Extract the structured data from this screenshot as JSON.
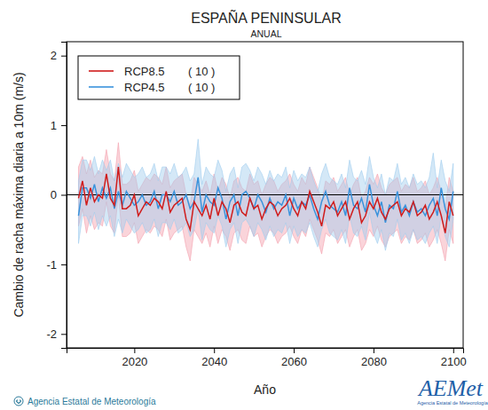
{
  "chart_data": {
    "type": "line",
    "title": "ESPAÑA PENINSULAR",
    "subtitle": "ANUAL",
    "x_label": "Año",
    "y_label": "Cambio de racha máxima diaria a 10m (m/s)",
    "credit": "Agencia Estatal de Meteorología",
    "logo": "AEMet",
    "logo_caption": "Agencia Estatal de Meteorología",
    "xlim": [
      2003,
      2102.5
    ],
    "ylim": [
      -2.2,
      2.2
    ],
    "xticks": [
      2020,
      2040,
      2060,
      2080,
      2100
    ],
    "yticks": [
      -2,
      -1,
      0,
      1,
      2
    ],
    "reference_line": 0,
    "grid": false,
    "legend": "top-left",
    "x": [
      2006,
      2007,
      2008,
      2009,
      2010,
      2011,
      2012,
      2013,
      2014,
      2015,
      2016,
      2017,
      2018,
      2019,
      2020,
      2021,
      2022,
      2023,
      2024,
      2025,
      2026,
      2027,
      2028,
      2029,
      2030,
      2031,
      2032,
      2033,
      2034,
      2035,
      2036,
      2037,
      2038,
      2039,
      2040,
      2041,
      2042,
      2043,
      2044,
      2045,
      2046,
      2047,
      2048,
      2049,
      2050,
      2051,
      2052,
      2053,
      2054,
      2055,
      2056,
      2057,
      2058,
      2059,
      2060,
      2061,
      2062,
      2063,
      2064,
      2065,
      2066,
      2067,
      2068,
      2069,
      2070,
      2071,
      2072,
      2073,
      2074,
      2075,
      2076,
      2077,
      2078,
      2079,
      2080,
      2081,
      2082,
      2083,
      2084,
      2085,
      2086,
      2087,
      2088,
      2089,
      2090,
      2091,
      2092,
      2093,
      2094,
      2095,
      2096,
      2097,
      2098,
      2099,
      2100
    ],
    "series": [
      {
        "name": "RCP8.5",
        "models": "( 10 )",
        "color": "#d01c1c",
        "band_color": "#f4a0ad",
        "values": [
          -0.05,
          0.2,
          -0.15,
          0.1,
          -0.1,
          0.0,
          -0.05,
          0.3,
          -0.05,
          -0.15,
          0.4,
          -0.2,
          -0.2,
          -0.15,
          0.0,
          -0.3,
          -0.2,
          -0.1,
          -0.15,
          -0.05,
          -0.1,
          -0.2,
          0.05,
          -0.25,
          -0.15,
          -0.1,
          -0.05,
          -0.35,
          -0.5,
          -0.1,
          -0.2,
          -0.3,
          -0.15,
          -0.35,
          -0.05,
          -0.3,
          -0.1,
          -0.2,
          -0.4,
          -0.15,
          -0.1,
          -0.25,
          -0.3,
          -0.05,
          -0.2,
          -0.15,
          -0.35,
          -0.2,
          -0.1,
          -0.15,
          -0.3,
          -0.2,
          -0.15,
          -0.05,
          -0.2,
          -0.3,
          -0.1,
          -0.2,
          0.05,
          -0.1,
          -0.25,
          -0.45,
          -0.15,
          -0.2,
          -0.1,
          -0.3,
          -0.2,
          -0.1,
          -0.35,
          -0.2,
          -0.1,
          -0.4,
          -0.3,
          -0.1,
          -0.2,
          -0.05,
          -0.25,
          -0.35,
          -0.2,
          -0.15,
          -0.1,
          -0.3,
          -0.2,
          -0.25,
          -0.1,
          -0.3,
          -0.25,
          -0.15,
          -0.35,
          -0.25,
          -0.1,
          -0.3,
          -0.55,
          -0.1,
          -0.3
        ],
        "upper": [
          0.4,
          0.55,
          0.3,
          0.5,
          0.25,
          0.35,
          0.3,
          0.65,
          0.3,
          0.2,
          0.75,
          0.15,
          0.15,
          0.2,
          0.35,
          0.05,
          0.15,
          0.25,
          0.2,
          0.3,
          0.25,
          0.15,
          0.4,
          0.1,
          0.2,
          0.25,
          0.3,
          0.0,
          -0.15,
          0.25,
          0.15,
          0.05,
          0.2,
          0.0,
          0.3,
          0.05,
          0.25,
          0.15,
          -0.05,
          0.2,
          0.25,
          0.1,
          0.05,
          0.3,
          0.15,
          0.2,
          0.0,
          0.15,
          0.25,
          0.2,
          0.05,
          0.15,
          0.2,
          0.3,
          0.15,
          0.05,
          0.25,
          0.15,
          0.4,
          0.25,
          0.1,
          -0.1,
          0.2,
          0.15,
          0.25,
          0.05,
          0.15,
          0.25,
          0.0,
          0.15,
          0.25,
          -0.05,
          0.05,
          0.25,
          0.15,
          0.3,
          0.1,
          0.0,
          0.15,
          0.2,
          0.25,
          0.05,
          0.15,
          0.1,
          0.25,
          0.05,
          0.1,
          0.2,
          0.0,
          0.1,
          0.25,
          0.05,
          -0.2,
          0.25,
          0.05
        ],
        "lower": [
          -0.45,
          -0.2,
          -0.55,
          -0.3,
          -0.5,
          -0.4,
          -0.45,
          -0.1,
          -0.45,
          -0.55,
          0.0,
          -0.6,
          -0.6,
          -0.55,
          -0.4,
          -0.7,
          -0.6,
          -0.5,
          -0.55,
          -0.45,
          -0.5,
          -0.6,
          -0.35,
          -0.65,
          -0.55,
          -0.5,
          -0.45,
          -0.75,
          -0.95,
          -0.5,
          -0.6,
          -0.7,
          -0.55,
          -0.75,
          -0.45,
          -0.7,
          -0.5,
          -0.6,
          -0.8,
          -0.55,
          -0.5,
          -0.65,
          -0.7,
          -0.45,
          -0.6,
          -0.55,
          -0.75,
          -0.6,
          -0.5,
          -0.55,
          -0.7,
          -0.6,
          -0.55,
          -0.45,
          -0.6,
          -0.7,
          -0.5,
          -0.6,
          -0.35,
          -0.5,
          -0.65,
          -0.85,
          -0.55,
          -0.6,
          -0.5,
          -0.7,
          -0.6,
          -0.5,
          -0.75,
          -0.6,
          -0.5,
          -0.8,
          -0.7,
          -0.5,
          -0.6,
          -0.45,
          -0.65,
          -0.75,
          -0.6,
          -0.55,
          -0.5,
          -0.7,
          -0.6,
          -0.65,
          -0.5,
          -0.7,
          -0.65,
          -0.55,
          -0.75,
          -0.65,
          -0.5,
          -0.7,
          -0.95,
          -0.5,
          -0.7
        ]
      },
      {
        "name": "RCP4.5",
        "models": "( 10 )",
        "color": "#3a93dc",
        "band_color": "#9fcdee",
        "values": [
          -0.3,
          0.1,
          0.1,
          -0.05,
          0.15,
          -0.1,
          0.1,
          -0.05,
          0.1,
          -0.2,
          0.05,
          -0.15,
          0.05,
          -0.05,
          -0.15,
          -0.1,
          0.0,
          -0.15,
          -0.1,
          0.05,
          -0.2,
          0.0,
          0.0,
          -0.1,
          0.05,
          -0.15,
          -0.1,
          0.0,
          -0.2,
          -0.1,
          0.25,
          -0.25,
          0.0,
          -0.1,
          -0.15,
          0.1,
          -0.05,
          -0.35,
          -0.1,
          0.0,
          -0.3,
          0.0,
          0.05,
          -0.05,
          -0.2,
          0.0,
          -0.1,
          -0.25,
          -0.05,
          -0.2,
          -0.1,
          -0.15,
          0.0,
          -0.3,
          -0.05,
          -0.2,
          -0.1,
          -0.15,
          0.0,
          -0.2,
          -0.35,
          -0.1,
          0.05,
          -0.15,
          -0.2,
          -0.25,
          -0.1,
          -0.3,
          0.1,
          -0.15,
          -0.2,
          -0.05,
          -0.25,
          0.15,
          -0.15,
          -0.3,
          -0.1,
          -0.4,
          -0.15,
          -0.2,
          0.05,
          -0.25,
          -0.15,
          -0.3,
          -0.1,
          -0.25,
          -0.2,
          -0.3,
          -0.15,
          -0.05,
          -0.3,
          0.1,
          -0.2,
          -0.35,
          0.05
        ],
        "upper": [
          0.2,
          0.5,
          0.5,
          0.35,
          0.55,
          0.3,
          0.5,
          0.35,
          0.5,
          0.2,
          0.45,
          0.25,
          0.45,
          0.35,
          0.25,
          0.3,
          0.4,
          0.25,
          0.3,
          0.45,
          0.2,
          0.4,
          0.4,
          0.3,
          0.45,
          0.25,
          0.3,
          0.4,
          0.2,
          0.3,
          0.8,
          0.15,
          0.4,
          0.3,
          0.25,
          0.5,
          0.35,
          0.05,
          0.3,
          0.4,
          0.1,
          0.4,
          0.45,
          0.35,
          0.2,
          0.4,
          0.3,
          0.15,
          0.35,
          0.2,
          0.3,
          0.25,
          0.4,
          0.1,
          0.35,
          0.2,
          0.3,
          0.25,
          0.4,
          0.2,
          0.05,
          0.3,
          0.45,
          0.25,
          0.2,
          0.15,
          0.3,
          0.1,
          0.5,
          0.25,
          0.2,
          0.35,
          0.15,
          0.55,
          0.25,
          0.1,
          0.3,
          0.0,
          0.25,
          0.2,
          0.45,
          0.15,
          0.25,
          0.1,
          0.3,
          0.15,
          0.2,
          0.1,
          0.25,
          0.6,
          0.1,
          0.5,
          0.2,
          0.05,
          0.45
        ],
        "lower": [
          -0.7,
          -0.3,
          -0.3,
          -0.45,
          -0.25,
          -0.5,
          -0.3,
          -0.45,
          -0.3,
          -0.6,
          -0.35,
          -0.55,
          -0.35,
          -0.45,
          -0.55,
          -0.5,
          -0.4,
          -0.55,
          -0.5,
          -0.35,
          -0.6,
          -0.4,
          -0.4,
          -0.5,
          -0.35,
          -0.55,
          -0.5,
          -0.4,
          -0.6,
          -0.5,
          -0.2,
          -0.65,
          -0.4,
          -0.5,
          -0.55,
          -0.3,
          -0.45,
          -0.75,
          -0.5,
          -0.4,
          -0.7,
          -0.4,
          -0.35,
          -0.45,
          -0.6,
          -0.4,
          -0.5,
          -0.65,
          -0.45,
          -0.6,
          -0.5,
          -0.55,
          -0.4,
          -0.7,
          -0.45,
          -0.6,
          -0.5,
          -0.55,
          -0.4,
          -0.6,
          -0.75,
          -0.5,
          -0.35,
          -0.55,
          -0.6,
          -0.65,
          -0.5,
          -0.7,
          -0.3,
          -0.55,
          -0.6,
          -0.45,
          -0.65,
          -0.25,
          -0.55,
          -0.7,
          -0.5,
          -0.8,
          -0.55,
          -0.6,
          -0.35,
          -0.65,
          -0.55,
          -0.7,
          -0.5,
          -0.65,
          -0.6,
          -0.7,
          -0.55,
          -0.45,
          -0.7,
          -0.3,
          -0.6,
          -0.75,
          -0.35
        ]
      }
    ]
  }
}
